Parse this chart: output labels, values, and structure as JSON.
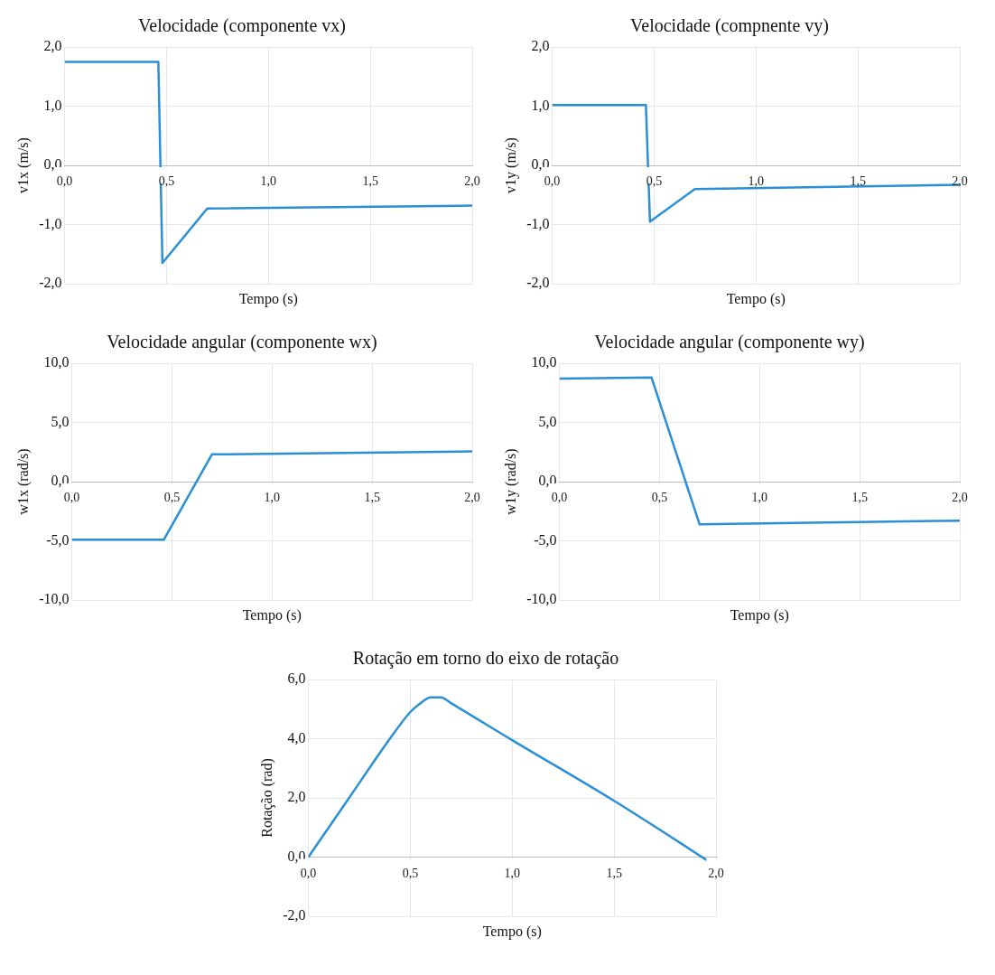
{
  "chart_data": [
    {
      "type": "line",
      "title": "Velocidade (componente vx)",
      "xlabel": "Tempo (s)",
      "ylabel": "v1x (m/s)",
      "x": [
        0,
        0.46,
        0.48,
        0.7,
        2.0
      ],
      "values": [
        1.75,
        1.75,
        -1.65,
        -0.73,
        -0.68
      ],
      "color": "#2b8fd6",
      "xlim": [
        0,
        2
      ],
      "ylim": [
        -2,
        2
      ],
      "xticks": [
        {
          "value": 0,
          "label": "0,0"
        },
        {
          "value": 0.5,
          "label": "0,5"
        },
        {
          "value": 1,
          "label": "1,0"
        },
        {
          "value": 1.5,
          "label": "1,5"
        },
        {
          "value": 2,
          "label": "2,0"
        }
      ],
      "yticks": [
        {
          "value": -2,
          "label": "-2,0"
        },
        {
          "value": -1,
          "label": "-1,0"
        },
        {
          "value": 0,
          "label": "0,0"
        },
        {
          "value": 1,
          "label": "1,0"
        },
        {
          "value": 2,
          "label": "2,0"
        }
      ],
      "grid": true
    },
    {
      "type": "line",
      "title": "Velocidade (compnente vy)",
      "xlabel": "Tempo (s)",
      "ylabel": "v1y (m/s)",
      "x": [
        0,
        0.46,
        0.48,
        0.7,
        2.0
      ],
      "values": [
        1.02,
        1.02,
        -0.95,
        -0.4,
        -0.33
      ],
      "color": "#2b8fd6",
      "xlim": [
        0,
        2
      ],
      "ylim": [
        -2,
        2
      ],
      "xticks": [
        {
          "value": 0,
          "label": "0,0"
        },
        {
          "value": 0.5,
          "label": "0,5"
        },
        {
          "value": 1,
          "label": "1,0"
        },
        {
          "value": 1.5,
          "label": "1,5"
        },
        {
          "value": 2,
          "label": "2,0"
        }
      ],
      "yticks": [
        {
          "value": -2,
          "label": "-2,0"
        },
        {
          "value": -1,
          "label": "-1,0"
        },
        {
          "value": 0,
          "label": "0,0"
        },
        {
          "value": 1,
          "label": "1,0"
        },
        {
          "value": 2,
          "label": "2,0"
        }
      ],
      "grid": true
    },
    {
      "type": "line",
      "title": "Velocidade angular (componente wx)",
      "xlabel": "Tempo (s)",
      "ylabel": "w1x (rad/s)",
      "x": [
        0,
        0.46,
        0.7,
        2.0
      ],
      "values": [
        -4.9,
        -4.9,
        2.3,
        2.55
      ],
      "color": "#2b8fd6",
      "xlim": [
        0,
        2
      ],
      "ylim": [
        -10,
        10
      ],
      "xticks": [
        {
          "value": 0,
          "label": "0,0"
        },
        {
          "value": 0.5,
          "label": "0,5"
        },
        {
          "value": 1,
          "label": "1,0"
        },
        {
          "value": 1.5,
          "label": "1,5"
        },
        {
          "value": 2,
          "label": "2,0"
        }
      ],
      "yticks": [
        {
          "value": -10,
          "label": "-10,0"
        },
        {
          "value": -5,
          "label": "-5,0"
        },
        {
          "value": 0,
          "label": "0,0"
        },
        {
          "value": 5,
          "label": "5,0"
        },
        {
          "value": 10,
          "label": "10,0"
        }
      ],
      "grid": true
    },
    {
      "type": "line",
      "title": "Velocidade angular (componente wy)",
      "xlabel": "Tempo (s)",
      "ylabel": "w1y (rad/s)",
      "x": [
        0,
        0.46,
        0.7,
        2.0
      ],
      "values": [
        8.7,
        8.8,
        -3.6,
        -3.3
      ],
      "color": "#2b8fd6",
      "xlim": [
        0,
        2
      ],
      "ylim": [
        -10,
        10
      ],
      "xticks": [
        {
          "value": 0,
          "label": "0,0"
        },
        {
          "value": 0.5,
          "label": "0,5"
        },
        {
          "value": 1,
          "label": "1,0"
        },
        {
          "value": 1.5,
          "label": "1,5"
        },
        {
          "value": 2,
          "label": "2,0"
        }
      ],
      "yticks": [
        {
          "value": -10,
          "label": "-10,0"
        },
        {
          "value": -5,
          "label": "-5,0"
        },
        {
          "value": 0,
          "label": "0,0"
        },
        {
          "value": 5,
          "label": "5,0"
        },
        {
          "value": 10,
          "label": "10,0"
        }
      ],
      "grid": true
    },
    {
      "type": "line",
      "title": "Rotação em torno do eixo de rotação",
      "xlabel": "Tempo (s)",
      "ylabel": "Rotação (rad)",
      "x": [
        0,
        0.2,
        0.4,
        0.5,
        0.55,
        0.6,
        0.65,
        0.7,
        1.0,
        1.5,
        2.0
      ],
      "values": [
        0,
        2.0,
        4.0,
        4.9,
        5.2,
        5.4,
        5.4,
        5.2,
        3.95,
        1.9,
        -0.3
      ],
      "color": "#2b8fd6",
      "xlim": [
        0,
        2
      ],
      "ylim": [
        -2,
        6
      ],
      "xticks": [
        {
          "value": 0,
          "label": "0,0"
        },
        {
          "value": 0.5,
          "label": "0,5"
        },
        {
          "value": 1,
          "label": "1,0"
        },
        {
          "value": 1.5,
          "label": "1,5"
        },
        {
          "value": 2,
          "label": "2,0"
        }
      ],
      "yticks": [
        {
          "value": -2,
          "label": "-2,0"
        },
        {
          "value": 0,
          "label": "0,0"
        },
        {
          "value": 2,
          "label": "2,0"
        },
        {
          "value": 4,
          "label": "4,0"
        },
        {
          "value": 6,
          "label": "6,0"
        }
      ],
      "grid": true
    }
  ]
}
